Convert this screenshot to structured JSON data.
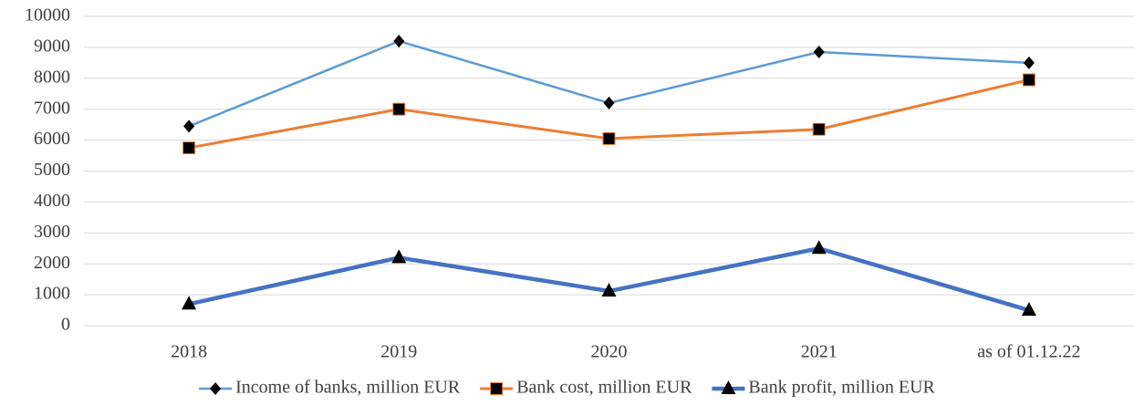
{
  "chart_data": {
    "type": "line",
    "categories": [
      "2018",
      "2019",
      "2020",
      "2021",
      "as of 01.12.22"
    ],
    "series": [
      {
        "name": "Income of banks, million EUR",
        "color": "#5b9bd5",
        "marker": "diamond",
        "values": [
          6450,
          9200,
          7200,
          8850,
          8500
        ]
      },
      {
        "name": "Bank cost, million EUR",
        "color": "#ed7d31",
        "marker": "square",
        "values": [
          5750,
          7000,
          6050,
          6350,
          7950
        ]
      },
      {
        "name": "Bank profit, million EUR",
        "color": "#4472c4",
        "marker": "triangle",
        "values": [
          700,
          2200,
          1120,
          2500,
          500
        ]
      }
    ],
    "ylim": [
      0,
      10000
    ],
    "yticks": [
      0,
      1000,
      2000,
      3000,
      4000,
      5000,
      6000,
      7000,
      8000,
      9000,
      10000
    ],
    "grid": true,
    "legend": "bottom"
  }
}
